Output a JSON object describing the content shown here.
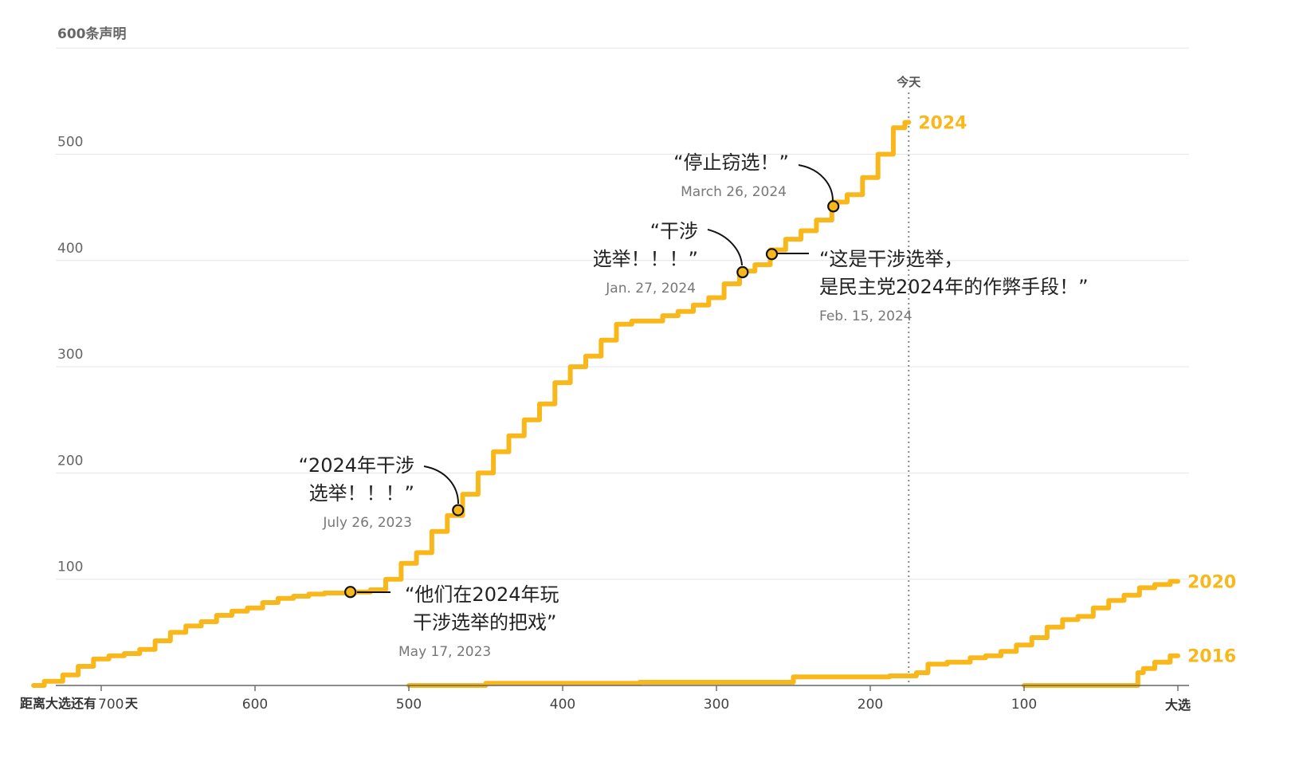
{
  "chart_data": {
    "type": "line",
    "x_axis": {
      "label_left": "距离大选还有",
      "unit": "天",
      "ticks": [
        700,
        600,
        500,
        400,
        300,
        200,
        100
      ],
      "end_label": "大选",
      "range": [
        744,
        0
      ],
      "direction": "reversed"
    },
    "y_axis": {
      "ticks": [
        100,
        200,
        300,
        400,
        500,
        600
      ],
      "top_label": "600条声明",
      "range": [
        0,
        600
      ]
    },
    "grid": true,
    "today": {
      "label": "今天",
      "days": 175
    },
    "series": [
      {
        "name": "2024",
        "color": "#f8b81c",
        "points": [
          [
            744,
            0
          ],
          [
            730,
            4
          ],
          [
            720,
            10
          ],
          [
            710,
            18
          ],
          [
            700,
            25
          ],
          [
            690,
            28
          ],
          [
            680,
            30
          ],
          [
            670,
            34
          ],
          [
            660,
            42
          ],
          [
            650,
            50
          ],
          [
            640,
            56
          ],
          [
            630,
            60
          ],
          [
            620,
            66
          ],
          [
            610,
            70
          ],
          [
            600,
            73
          ],
          [
            590,
            78
          ],
          [
            580,
            82
          ],
          [
            570,
            84
          ],
          [
            560,
            86
          ],
          [
            550,
            87
          ],
          [
            540,
            87
          ],
          [
            530,
            88
          ],
          [
            520,
            90
          ],
          [
            510,
            100
          ],
          [
            500,
            115
          ],
          [
            490,
            125
          ],
          [
            480,
            145
          ],
          [
            470,
            160
          ],
          [
            460,
            180
          ],
          [
            450,
            200
          ],
          [
            440,
            220
          ],
          [
            430,
            235
          ],
          [
            420,
            250
          ],
          [
            410,
            265
          ],
          [
            400,
            285
          ],
          [
            390,
            300
          ],
          [
            380,
            310
          ],
          [
            370,
            325
          ],
          [
            360,
            340
          ],
          [
            350,
            343
          ],
          [
            340,
            343
          ],
          [
            330,
            348
          ],
          [
            320,
            352
          ],
          [
            310,
            358
          ],
          [
            300,
            365
          ],
          [
            290,
            378
          ],
          [
            280,
            390
          ],
          [
            270,
            396
          ],
          [
            260,
            410
          ],
          [
            250,
            420
          ],
          [
            240,
            428
          ],
          [
            230,
            438
          ],
          [
            220,
            455
          ],
          [
            210,
            462
          ],
          [
            200,
            478
          ],
          [
            190,
            500
          ],
          [
            180,
            525
          ],
          [
            175,
            530
          ]
        ]
      },
      {
        "name": "2020",
        "color": "#f8b81c",
        "points": [
          [
            500,
            0
          ],
          [
            400,
            2
          ],
          [
            300,
            3
          ],
          [
            200,
            8
          ],
          [
            175,
            9
          ],
          [
            165,
            12
          ],
          [
            160,
            20
          ],
          [
            140,
            22
          ],
          [
            130,
            26
          ],
          [
            120,
            28
          ],
          [
            110,
            32
          ],
          [
            100,
            38
          ],
          [
            90,
            45
          ],
          [
            80,
            55
          ],
          [
            70,
            62
          ],
          [
            60,
            65
          ],
          [
            50,
            73
          ],
          [
            40,
            80
          ],
          [
            30,
            85
          ],
          [
            20,
            92
          ],
          [
            10,
            95
          ],
          [
            0,
            98
          ]
        ]
      },
      {
        "name": "2016",
        "color": "#f8b81c",
        "points": [
          [
            100,
            0
          ],
          [
            27,
            0
          ],
          [
            25,
            12
          ],
          [
            20,
            16
          ],
          [
            10,
            22
          ],
          [
            0,
            28
          ]
        ]
      }
    ],
    "annotations": [
      {
        "quote": [
          "“他们在2024年玩",
          "干涉选举的把戏”"
        ],
        "date": "May 17, 2023",
        "days": 538,
        "value": 88
      },
      {
        "quote": [
          "“2024年干涉",
          "选举！！！”"
        ],
        "date": "July 26, 2023",
        "days": 468,
        "value": 165
      },
      {
        "quote": [
          "“干涉",
          "选举！！！”"
        ],
        "date": "Jan. 27, 2024",
        "days": 283,
        "value": 389
      },
      {
        "quote": [
          "“这是干涉选举，",
          "是民主党2024年的作弊手段！”"
        ],
        "date": "Feb. 15, 2024",
        "days": 264,
        "value": 406
      },
      {
        "quote": [
          "“停止窃选！”"
        ],
        "date": "March 26, 2024",
        "days": 224,
        "value": 451
      }
    ]
  }
}
